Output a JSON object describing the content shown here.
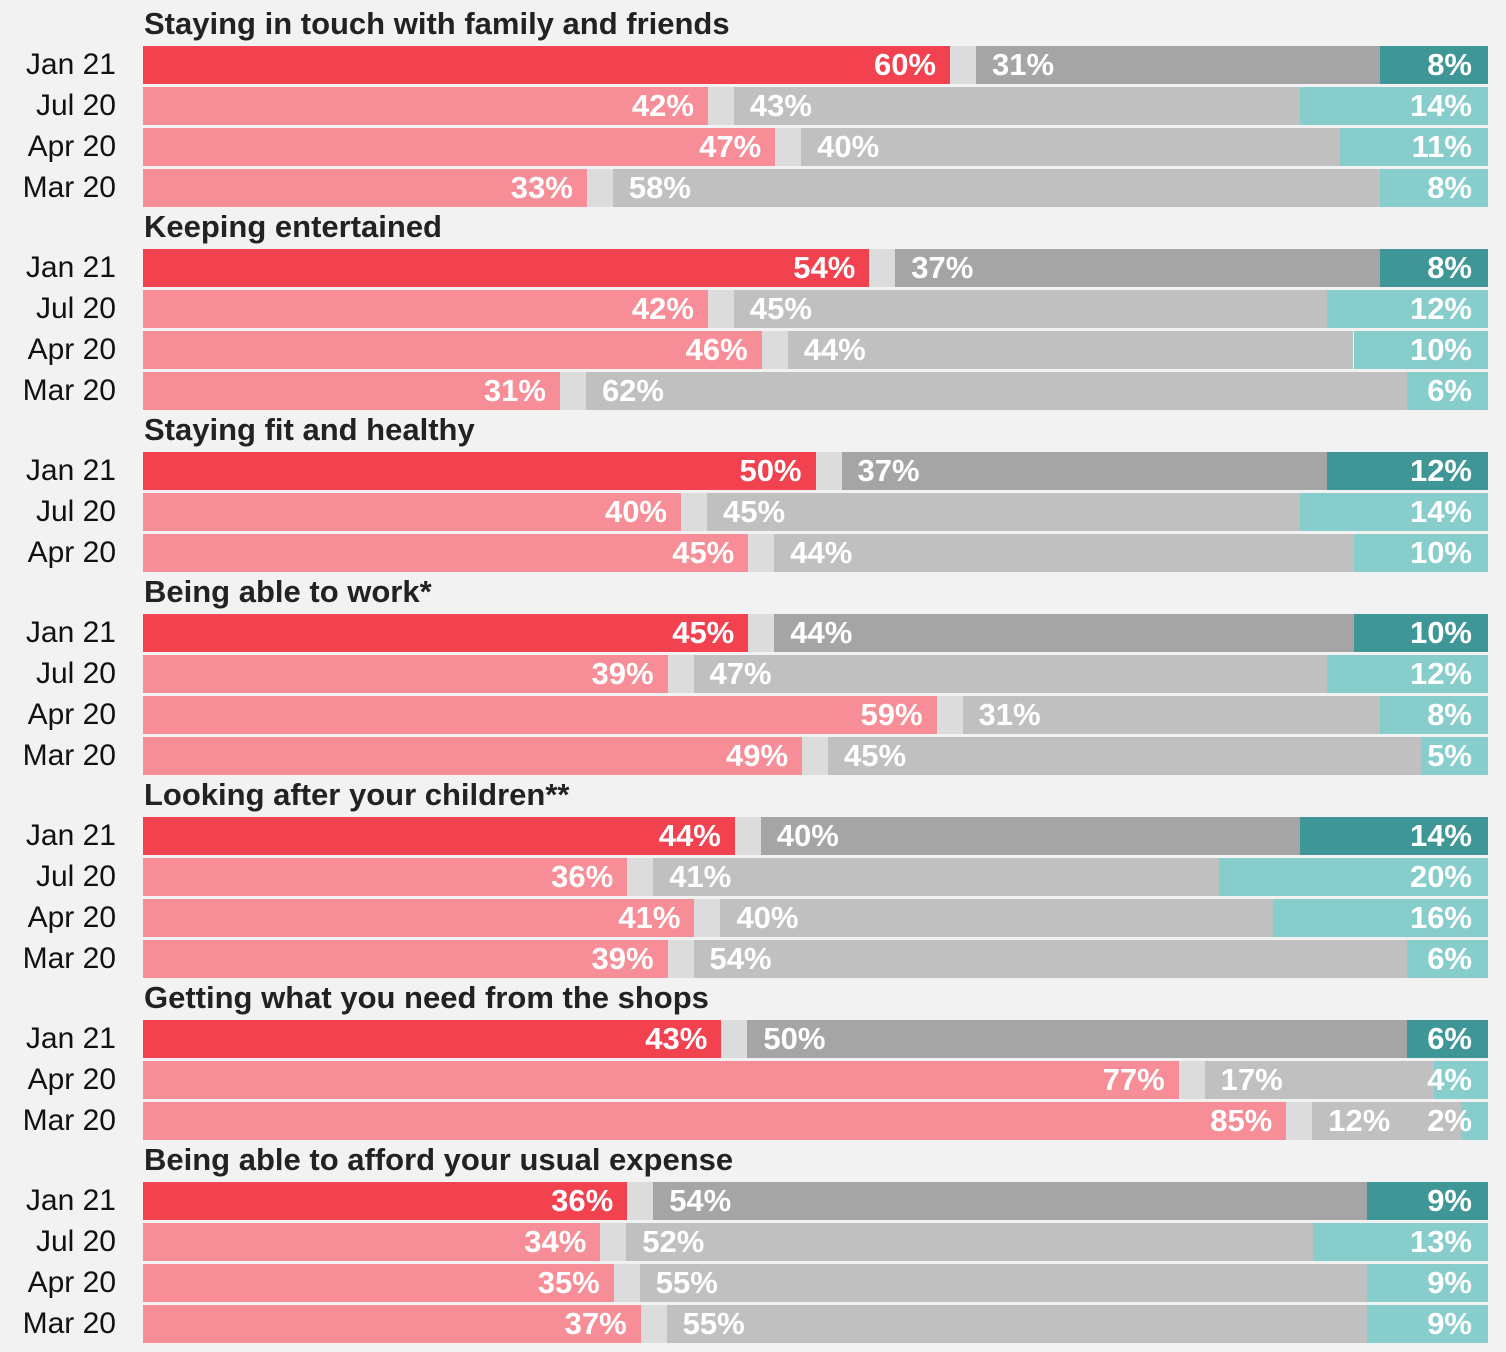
{
  "colors": {
    "red": "#f2414f",
    "pink": "#f78d96",
    "gap": "#dcdcdc",
    "grey_dark": "#a5a5a5",
    "grey_light": "#c0c0c0",
    "teal_dark": "#3f9696",
    "teal_light": "#86cdcc",
    "background": "#f2f2f2"
  },
  "chart_data": {
    "type": "bar",
    "orientation": "horizontal-stacked-100",
    "title": "",
    "xlabel": "",
    "ylabel": "",
    "xlim": [
      0,
      100
    ],
    "grid": false,
    "legend": "none",
    "groups": [
      {
        "name": "Staying in touch with family and friends",
        "rows": [
          {
            "label": "Jan 21",
            "values": [
              60,
              31,
              8
            ],
            "labels": [
              "60%",
              "31%",
              "8%"
            ]
          },
          {
            "label": "Jul 20",
            "values": [
              42,
              43,
              14
            ],
            "labels": [
              "42%",
              "43%",
              "14%"
            ]
          },
          {
            "label": "Apr 20",
            "values": [
              47,
              40,
              11
            ],
            "labels": [
              "47%",
              "40%",
              "11%"
            ]
          },
          {
            "label": "Mar 20",
            "values": [
              33,
              58,
              8
            ],
            "labels": [
              "33%",
              "58%",
              "8%"
            ]
          }
        ]
      },
      {
        "name": "Keeping entertained",
        "rows": [
          {
            "label": "Jan 21",
            "values": [
              54,
              37,
              8
            ],
            "labels": [
              "54%",
              "37%",
              "8%"
            ]
          },
          {
            "label": "Jul 20",
            "values": [
              42,
              45,
              12
            ],
            "labels": [
              "42%",
              "45%",
              "12%"
            ]
          },
          {
            "label": "Apr 20",
            "values": [
              46,
              44,
              10
            ],
            "labels": [
              "46%",
              "44%",
              "10%"
            ]
          },
          {
            "label": "Mar 20",
            "values": [
              31,
              62,
              6
            ],
            "labels": [
              "31%",
              "62%",
              "6%"
            ]
          }
        ]
      },
      {
        "name": "Staying fit and healthy",
        "rows": [
          {
            "label": "Jan 21",
            "values": [
              50,
              37,
              12
            ],
            "labels": [
              "50%",
              "37%",
              "12%"
            ]
          },
          {
            "label": "Jul 20",
            "values": [
              40,
              45,
              14
            ],
            "labels": [
              "40%",
              "45%",
              "14%"
            ]
          },
          {
            "label": "Apr 20",
            "values": [
              45,
              44,
              10
            ],
            "labels": [
              "45%",
              "44%",
              "10%"
            ]
          }
        ]
      },
      {
        "name": "Being able to work*",
        "rows": [
          {
            "label": "Jan 21",
            "values": [
              45,
              44,
              10
            ],
            "labels": [
              "45%",
              "44%",
              "10%"
            ]
          },
          {
            "label": "Jul 20",
            "values": [
              39,
              47,
              12
            ],
            "labels": [
              "39%",
              "47%",
              "12%"
            ]
          },
          {
            "label": "Apr 20",
            "values": [
              59,
              31,
              8
            ],
            "labels": [
              "59%",
              "31%",
              "8%"
            ]
          },
          {
            "label": "Mar 20",
            "values": [
              49,
              45,
              5
            ],
            "labels": [
              "49%",
              "45%",
              "5%"
            ]
          }
        ]
      },
      {
        "name": "Looking after your children**",
        "rows": [
          {
            "label": "Jan 21",
            "values": [
              44,
              40,
              14
            ],
            "labels": [
              "44%",
              "40%",
              "14%"
            ]
          },
          {
            "label": "Jul 20",
            "values": [
              36,
              41,
              20
            ],
            "labels": [
              "36%",
              "41%",
              "20%"
            ]
          },
          {
            "label": "Apr 20",
            "values": [
              41,
              40,
              16
            ],
            "labels": [
              "41%",
              "40%",
              "16%"
            ]
          },
          {
            "label": "Mar 20",
            "values": [
              39,
              54,
              6
            ],
            "labels": [
              "39%",
              "54%",
              "6%"
            ]
          }
        ]
      },
      {
        "name": "Getting what you need from the shops",
        "rows": [
          {
            "label": "Jan 21",
            "values": [
              43,
              50,
              6
            ],
            "labels": [
              "43%",
              "50%",
              "6%"
            ]
          },
          {
            "label": "Apr 20",
            "values": [
              77,
              17,
              4
            ],
            "labels": [
              "77%",
              "17%",
              "4%"
            ]
          },
          {
            "label": "Mar 20",
            "values": [
              85,
              12,
              2
            ],
            "labels": [
              "85%",
              "12%",
              "2%"
            ]
          }
        ]
      },
      {
        "name": "Being able to afford your usual expense",
        "rows": [
          {
            "label": "Jan 21",
            "values": [
              36,
              54,
              9
            ],
            "labels": [
              "36%",
              "54%",
              "9%"
            ]
          },
          {
            "label": "Jul 20",
            "values": [
              34,
              52,
              13
            ],
            "labels": [
              "34%",
              "52%",
              "13%"
            ]
          },
          {
            "label": "Apr 20",
            "values": [
              35,
              55,
              9
            ],
            "labels": [
              "35%",
              "55%",
              "9%"
            ]
          },
          {
            "label": "Mar 20",
            "values": [
              37,
              55,
              9
            ],
            "labels": [
              "37%",
              "55%",
              "9%"
            ]
          }
        ]
      }
    ]
  }
}
